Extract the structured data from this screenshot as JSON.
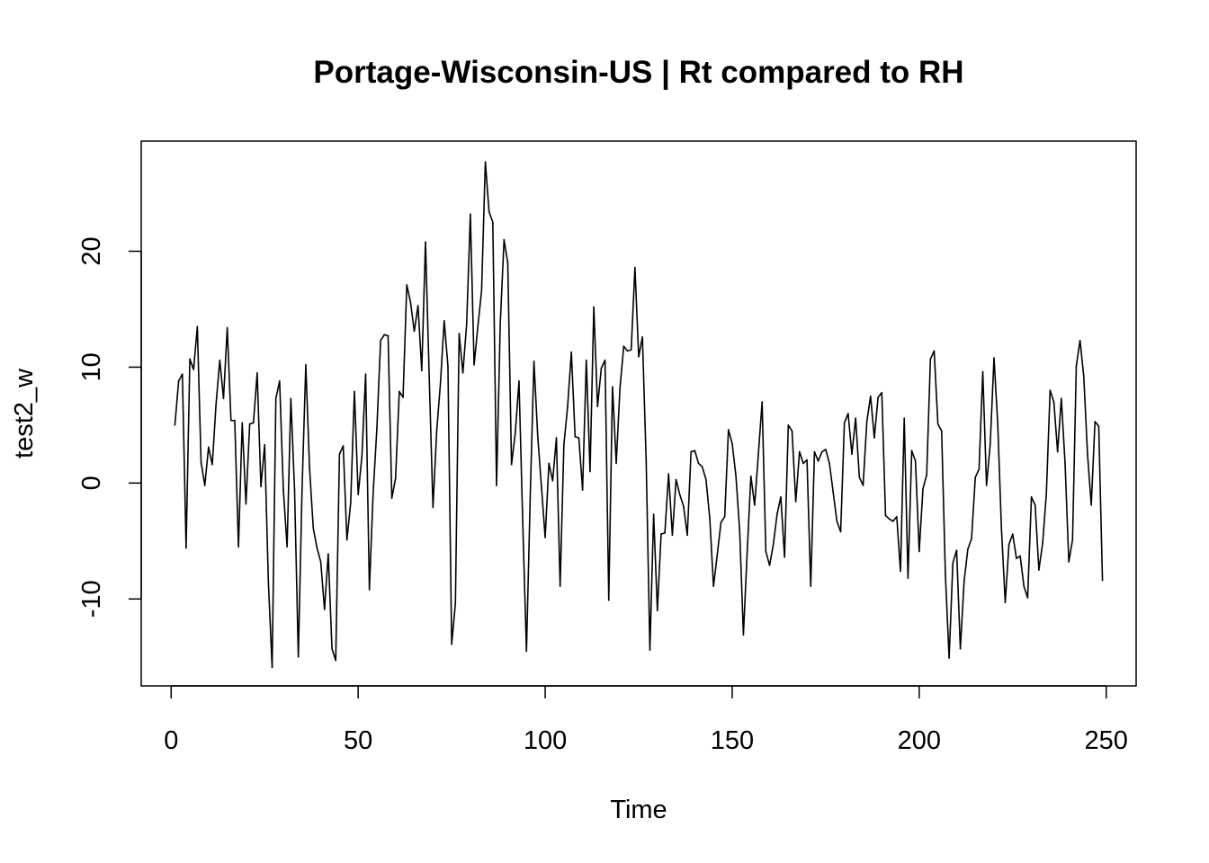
{
  "chart_data": {
    "type": "line",
    "title": "Portage-Wisconsin-US | Rt compared to RH",
    "xlabel": "Time",
    "ylabel": "test2_w",
    "xlim": [
      -8,
      258
    ],
    "ylim": [
      -17.5,
      29.5
    ],
    "x_ticks": [
      0,
      50,
      100,
      150,
      200,
      250
    ],
    "x_tick_labels": [
      "0",
      "50",
      "100",
      "150",
      "200",
      "250"
    ],
    "y_ticks": [
      -10,
      0,
      10,
      20
    ],
    "y_tick_labels": [
      "-10",
      "0",
      "10",
      "20"
    ],
    "grid": false,
    "legend": "none",
    "line_color": "#000000",
    "series": [
      {
        "x_start": 1,
        "values": [
          5,
          8.8,
          9.4,
          -5.6,
          10.7,
          9.8,
          13.5,
          1.8,
          -0.2,
          3.1,
          1.6,
          6.8,
          10.6,
          7.3,
          13.4,
          5.4,
          5.4,
          -5.5,
          5.2,
          -1.8,
          5.1,
          5.2,
          9.5,
          -0.3,
          3.3,
          -8.6,
          -15.9,
          7.3,
          8.8,
          -0.6,
          -5.5,
          7.3,
          -0.6,
          -15,
          -0.5,
          10.2,
          1.3,
          -3.9,
          -5.6,
          -6.8,
          -10.9,
          -6.1,
          -14.3,
          -15.3,
          2.5,
          3.2,
          -4.9,
          -1.7,
          7.9,
          -1,
          2.3,
          9.4,
          -9.2,
          -0.9,
          4.7,
          12.3,
          12.8,
          12.7,
          -1.3,
          0.4,
          7.9,
          7.4,
          17.1,
          15.6,
          13.1,
          15.3,
          9.7,
          20.8,
          9.1,
          -2.1,
          4.5,
          8.6,
          14,
          10.1,
          -13.9,
          -10.4,
          12.9,
          9.5,
          13.7,
          23.2,
          10.2,
          13.5,
          16.6,
          27.7,
          23.4,
          22.5,
          -0.2,
          13.8,
          21,
          19,
          1.6,
          4.3,
          8.8,
          -3.4,
          -14.5,
          -1.2,
          10.5,
          4.1,
          -0.3,
          -4.7,
          1.7,
          0.2,
          3.9,
          -8.9,
          3.3,
          6.6,
          11.3,
          4,
          3.9,
          -0.6,
          10.6,
          1,
          15.2,
          6.6,
          9.9,
          10.6,
          -10.1,
          8.3,
          1.7,
          8.2,
          11.8,
          11.4,
          11.5,
          18.6,
          10.9,
          12.6,
          1.9,
          -14.4,
          -2.7,
          -11,
          -4.4,
          -4.3,
          0.8,
          -4.5,
          0.3,
          -1,
          -2,
          -4.5,
          2.7,
          2.8,
          1.7,
          1.4,
          0.3,
          -3,
          -8.9,
          -6.2,
          -3.4,
          -2.9,
          4.6,
          3.4,
          0.6,
          -4.1,
          -13.1,
          -6,
          0.6,
          -1.9,
          2.5,
          7,
          -5.9,
          -7.1,
          -5.3,
          -2.7,
          -1.2,
          -6.4,
          5,
          4.5,
          -1.6,
          2.7,
          1.7,
          2,
          -8.9,
          2.7,
          1.9,
          2.7,
          2.9,
          1.7,
          -0.8,
          -3.3,
          -4.2,
          5.2,
          6,
          2.5,
          5.6,
          0.5,
          -0.2,
          5.3,
          7.5,
          3.9,
          7.4,
          7.8,
          -2.8,
          -3.1,
          -3.3,
          -2.9,
          -7.6,
          5.6,
          -8.2,
          2.8,
          1.9,
          -5.9,
          -0.5,
          0.7,
          10.7,
          11.4,
          5.1,
          4.5,
          -7.9,
          -15.1,
          -6.9,
          -5.8,
          -14.3,
          -8.5,
          -5.7,
          -4.8,
          0.5,
          1.2,
          9.6,
          -0.2,
          3.4,
          10.8,
          5.1,
          -4,
          -10.3,
          -5.3,
          -4.4,
          -6.5,
          -6.3,
          -8.9,
          -9.9,
          -1.2,
          -1.9,
          -7.5,
          -5.2,
          -0.9,
          8,
          7,
          2.7,
          7.3,
          1.7,
          -6.8,
          -4.9,
          10.1,
          12.3,
          9.2,
          2.5,
          -1.9,
          5.3,
          4.9,
          -8.4
        ]
      }
    ]
  }
}
